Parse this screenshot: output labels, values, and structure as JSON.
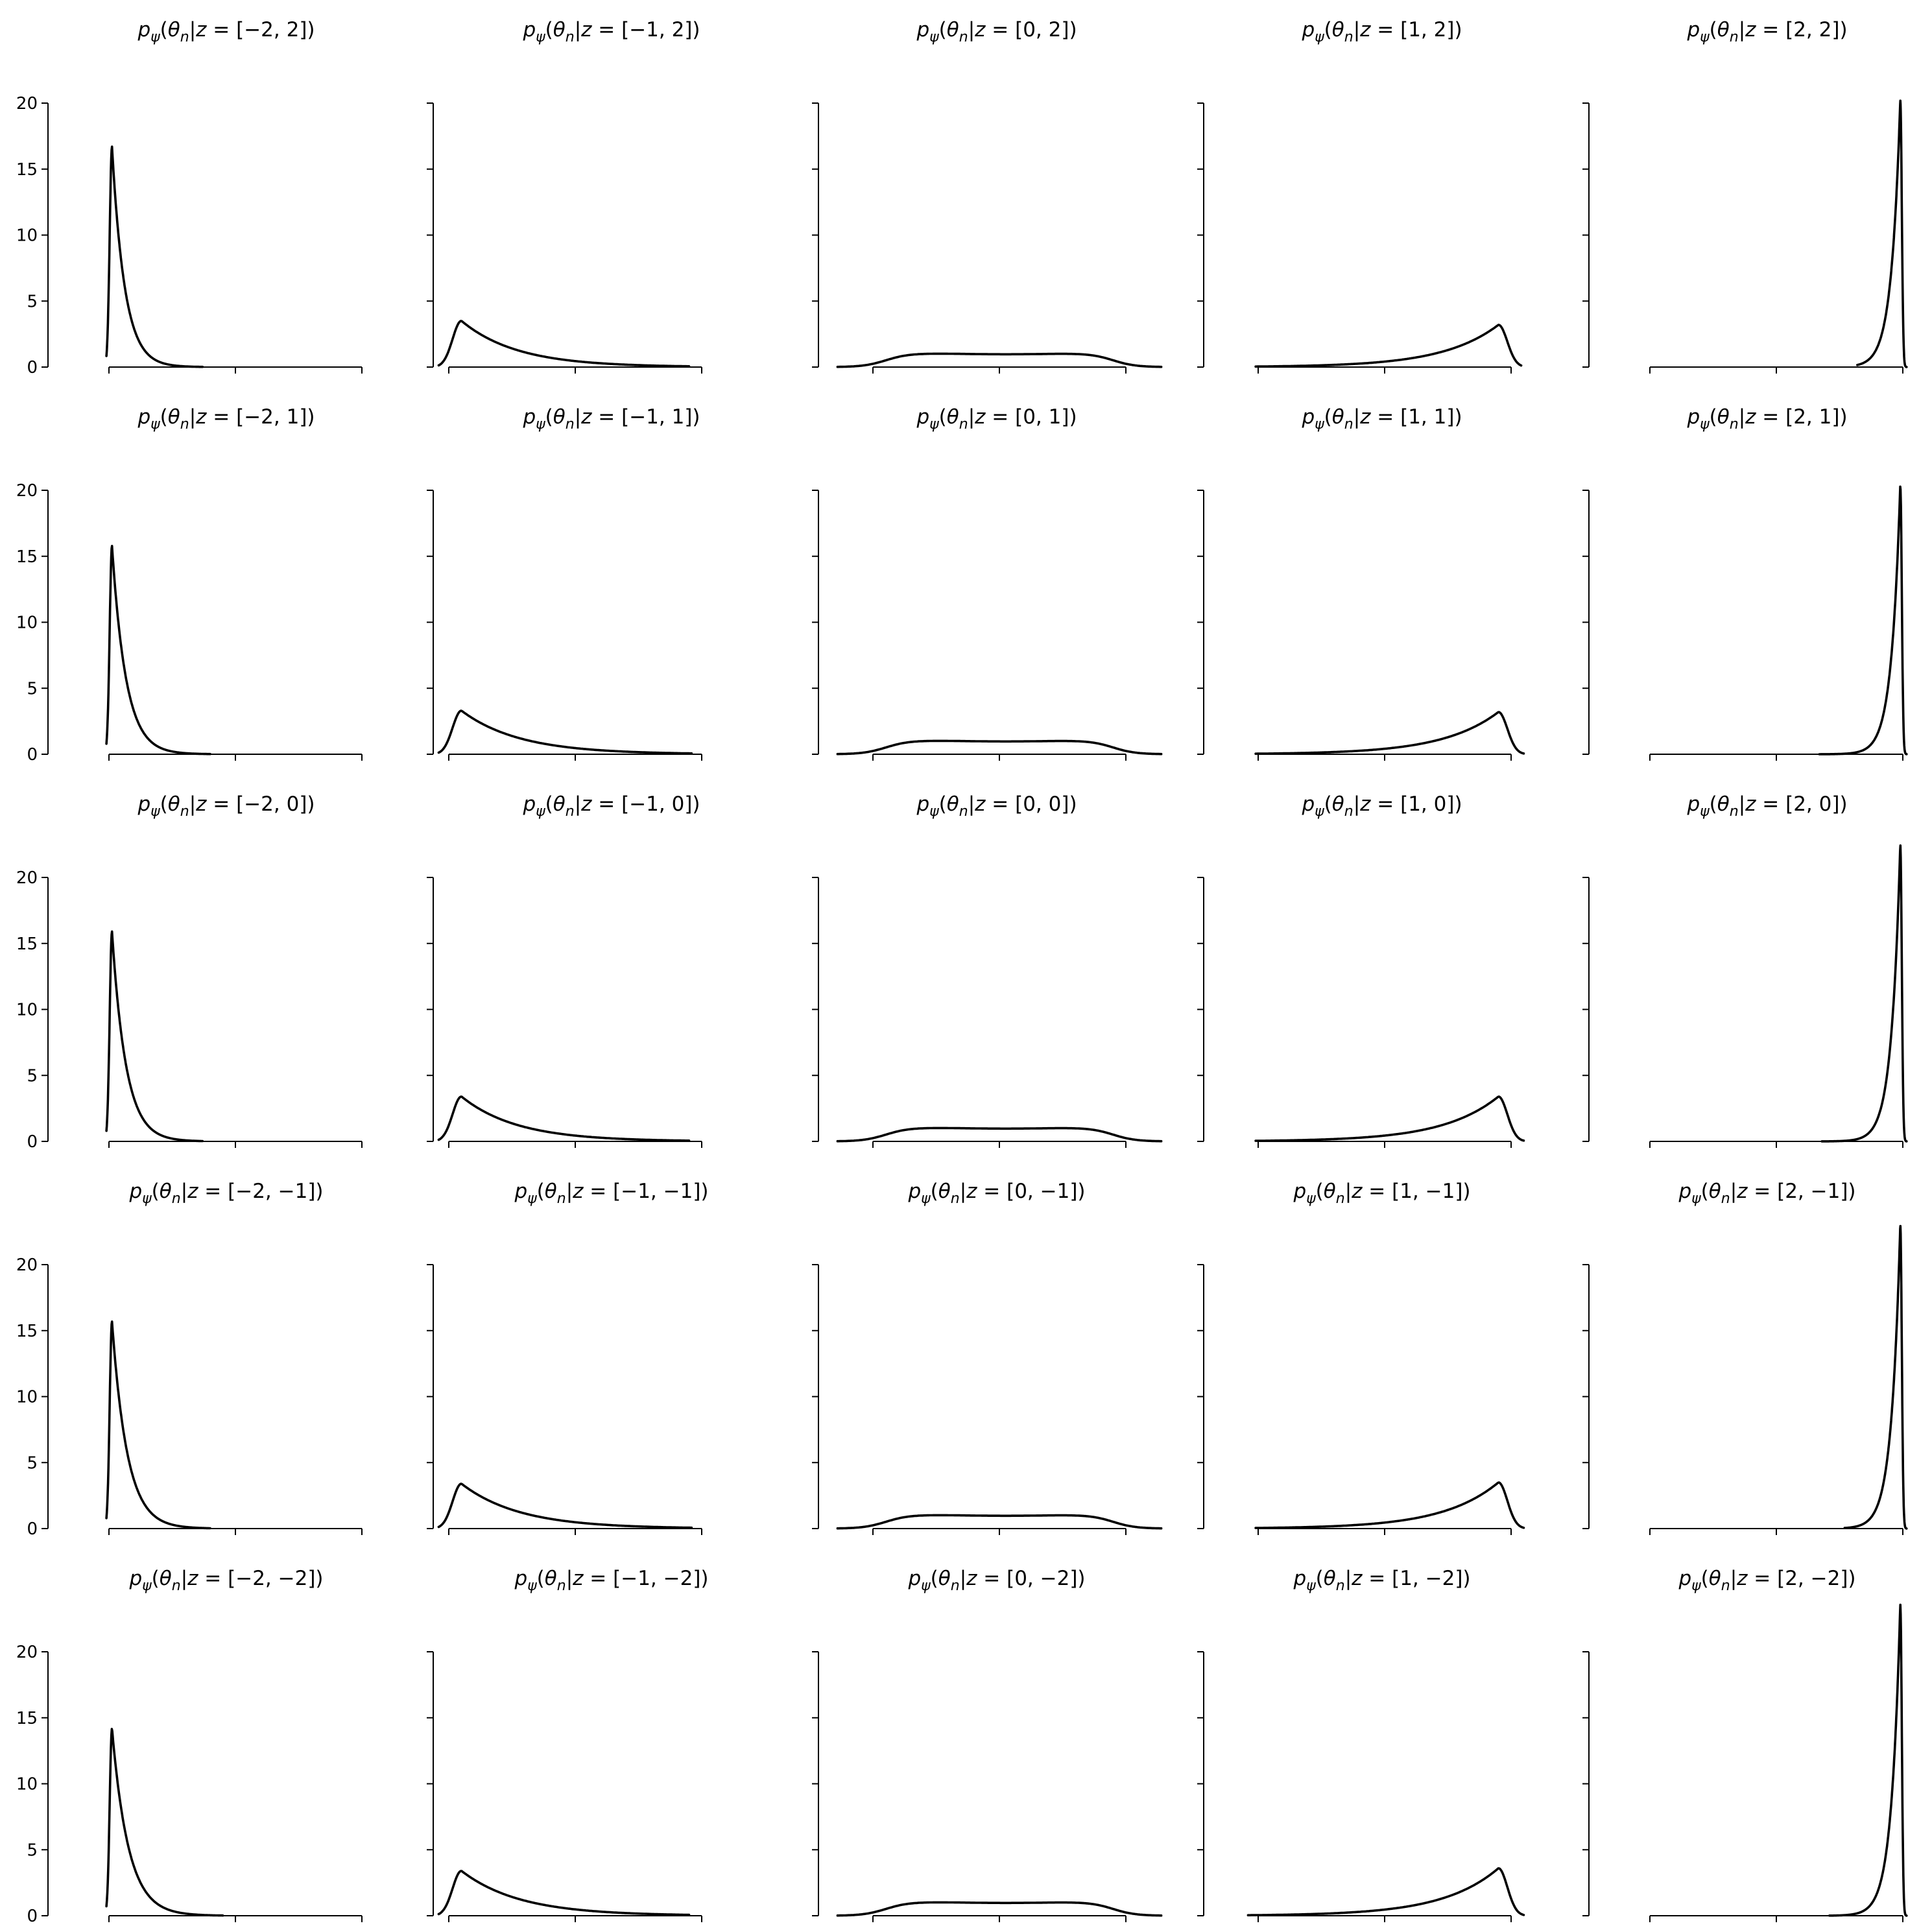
{
  "chart_data": {
    "type": "line",
    "layout": "5x5 grid of density plots, shared axes",
    "grid": false,
    "xticks": [
      "0.0",
      "0.5",
      "1.0"
    ],
    "yticks": [
      "0",
      "5",
      "10",
      "15",
      "20"
    ],
    "ylim": [
      0,
      20
    ],
    "line_color": "#000000",
    "panels": [
      {
        "z": [
          -2,
          2
        ],
        "title": {
          "z1": "−2",
          "z2": "2"
        },
        "xlim": [
          -0.02,
          1.0
        ],
        "xrange": [
          -0.01,
          0.37
        ],
        "peak_x": 0.012,
        "peak_y": 16.7,
        "width_left": 0.009,
        "decay": 0.05,
        "shoulder": 0.6
      },
      {
        "z": [
          -1,
          2
        ],
        "title": {
          "z1": "−1",
          "z2": "2"
        },
        "xlim": [
          -0.05,
          1.0
        ],
        "xrange": [
          -0.04,
          0.95
        ],
        "peak_x": 0.05,
        "peak_y": 3.5,
        "width_left": 0.035,
        "decay": 0.22
      },
      {
        "z": [
          0,
          2
        ],
        "title": {
          "z1": "0",
          "z2": "2"
        },
        "xlim": [
          -0.15,
          1.15
        ],
        "xrange": [
          -0.14,
          1.14
        ],
        "plateau": 1.0
      },
      {
        "z": [
          1,
          2
        ],
        "title": {
          "z1": "1",
          "z2": "2"
        },
        "xlim": [
          -0.05,
          1.1
        ],
        "xrange": [
          -0.01,
          1.04
        ],
        "peak_x": 0.95,
        "peak_y": 3.2,
        "width_right": 0.035,
        "decay": 0.22
      },
      {
        "z": [
          2,
          2
        ],
        "title": {
          "z1": "2",
          "z2": "2"
        },
        "xlim": [
          -0.02,
          1.02
        ],
        "xrange": [
          0.82,
          1.015
        ],
        "peak_x": 0.99,
        "peak_y": 20.2,
        "width_right": 0.006,
        "decay": 0.035
      },
      {
        "z": [
          -2,
          1
        ],
        "title": {
          "z1": "−2",
          "z2": "1"
        },
        "xlim": [
          -0.02,
          1.0
        ],
        "xrange": [
          -0.01,
          0.4
        ],
        "peak_x": 0.012,
        "peak_y": 15.8,
        "width_left": 0.009,
        "decay": 0.055
      },
      {
        "z": [
          -1,
          1
        ],
        "title": {
          "z1": "−1",
          "z2": "1"
        },
        "xlim": [
          -0.05,
          1.0
        ],
        "xrange": [
          -0.04,
          0.96
        ],
        "peak_x": 0.05,
        "peak_y": 3.3,
        "width_left": 0.035,
        "decay": 0.23
      },
      {
        "z": [
          0,
          1
        ],
        "title": {
          "z1": "0",
          "z2": "1"
        },
        "xlim": [
          -0.15,
          1.15
        ],
        "xrange": [
          -0.14,
          1.14
        ],
        "plateau": 1.0
      },
      {
        "z": [
          1,
          1
        ],
        "title": {
          "z1": "1",
          "z2": "1"
        },
        "xlim": [
          -0.02,
          1.1
        ],
        "xrange": [
          -0.01,
          1.05
        ],
        "peak_x": 0.95,
        "peak_y": 3.2,
        "width_right": 0.035,
        "decay": 0.22
      },
      {
        "z": [
          2,
          1
        ],
        "title": {
          "z1": "2",
          "z2": "1"
        },
        "xlim": [
          -0.02,
          1.02
        ],
        "xrange": [
          0.67,
          1.015
        ],
        "peak_x": 0.99,
        "peak_y": 20.4,
        "width_right": 0.006,
        "decay": 0.035
      },
      {
        "z": [
          -2,
          0
        ],
        "title": {
          "z1": "−2",
          "z2": "0"
        },
        "xlim": [
          -0.02,
          1.0
        ],
        "xrange": [
          -0.01,
          0.37
        ],
        "peak_x": 0.012,
        "peak_y": 15.9,
        "width_left": 0.009,
        "decay": 0.055
      },
      {
        "z": [
          -1,
          0
        ],
        "title": {
          "z1": "−1",
          "z2": "0"
        },
        "xlim": [
          -0.05,
          1.0
        ],
        "xrange": [
          -0.04,
          0.95
        ],
        "peak_x": 0.05,
        "peak_y": 3.4,
        "width_left": 0.035,
        "decay": 0.22
      },
      {
        "z": [
          0,
          0
        ],
        "title": {
          "z1": "0",
          "z2": "0"
        },
        "xlim": [
          -0.15,
          1.15
        ],
        "xrange": [
          -0.14,
          1.14
        ],
        "plateau": 1.0
      },
      {
        "z": [
          1,
          0
        ],
        "title": {
          "z1": "1",
          "z2": "0"
        },
        "xlim": [
          -0.02,
          1.1
        ],
        "xrange": [
          -0.01,
          1.05
        ],
        "peak_x": 0.95,
        "peak_y": 3.4,
        "width_right": 0.035,
        "decay": 0.22
      },
      {
        "z": [
          2,
          0
        ],
        "title": {
          "z1": "2",
          "z2": "0"
        },
        "xlim": [
          -0.02,
          1.02
        ],
        "xrange": [
          0.68,
          1.015
        ],
        "peak_x": 0.99,
        "peak_y": 22.5,
        "width_right": 0.006,
        "decay": 0.035
      },
      {
        "z": [
          -2,
          -1
        ],
        "title": {
          "z1": "−2",
          "z2": "−1"
        },
        "xlim": [
          -0.02,
          1.0
        ],
        "xrange": [
          -0.01,
          0.4
        ],
        "peak_x": 0.012,
        "peak_y": 15.7,
        "width_left": 0.009,
        "decay": 0.06
      },
      {
        "z": [
          -1,
          -1
        ],
        "title": {
          "z1": "−1",
          "z2": "−1"
        },
        "xlim": [
          -0.05,
          1.0
        ],
        "xrange": [
          -0.04,
          0.96
        ],
        "peak_x": 0.05,
        "peak_y": 3.4,
        "width_left": 0.035,
        "decay": 0.23
      },
      {
        "z": [
          0,
          -1
        ],
        "title": {
          "z1": "0",
          "z2": "−1"
        },
        "xlim": [
          -0.15,
          1.15
        ],
        "xrange": [
          -0.14,
          1.14
        ],
        "plateau": 1.0
      },
      {
        "z": [
          1,
          -1
        ],
        "title": {
          "z1": "1",
          "z2": "−1"
        },
        "xlim": [
          -0.02,
          1.1
        ],
        "xrange": [
          -0.01,
          1.05
        ],
        "peak_x": 0.95,
        "peak_y": 3.5,
        "width_right": 0.035,
        "decay": 0.22
      },
      {
        "z": [
          2,
          -1
        ],
        "title": {
          "z1": "2",
          "z2": "−1"
        },
        "xlim": [
          -0.02,
          1.02
        ],
        "xrange": [
          0.77,
          1.015
        ],
        "peak_x": 0.99,
        "peak_y": 23.0,
        "width_right": 0.006,
        "decay": 0.035
      },
      {
        "z": [
          -2,
          -2
        ],
        "title": {
          "z1": "−2",
          "z2": "−2"
        },
        "xlim": [
          -0.02,
          1.0
        ],
        "xrange": [
          -0.01,
          0.45
        ],
        "peak_x": 0.012,
        "peak_y": 14.2,
        "width_left": 0.009,
        "decay": 0.065
      },
      {
        "z": [
          -1,
          -2
        ],
        "title": {
          "z1": "−1",
          "z2": "−2"
        },
        "xlim": [
          -0.05,
          1.0
        ],
        "xrange": [
          -0.04,
          0.95
        ],
        "peak_x": 0.05,
        "peak_y": 3.4,
        "width_left": 0.035,
        "decay": 0.23
      },
      {
        "z": [
          0,
          -2
        ],
        "title": {
          "z1": "0",
          "z2": "−2"
        },
        "xlim": [
          -0.15,
          1.15
        ],
        "xrange": [
          -0.14,
          1.14
        ],
        "plateau": 1.0
      },
      {
        "z": [
          1,
          -2
        ],
        "title": {
          "z1": "1",
          "z2": "−2"
        },
        "xlim": [
          -0.05,
          1.1
        ],
        "xrange": [
          -0.04,
          1.05
        ],
        "peak_x": 0.95,
        "peak_y": 3.6,
        "width_right": 0.035,
        "decay": 0.22
      },
      {
        "z": [
          2,
          -2
        ],
        "title": {
          "z1": "2",
          "z2": "−2"
        },
        "xlim": [
          -0.02,
          1.02
        ],
        "xrange": [
          0.71,
          1.015
        ],
        "peak_x": 0.99,
        "peak_y": 23.6,
        "width_right": 0.006,
        "decay": 0.035
      }
    ]
  }
}
